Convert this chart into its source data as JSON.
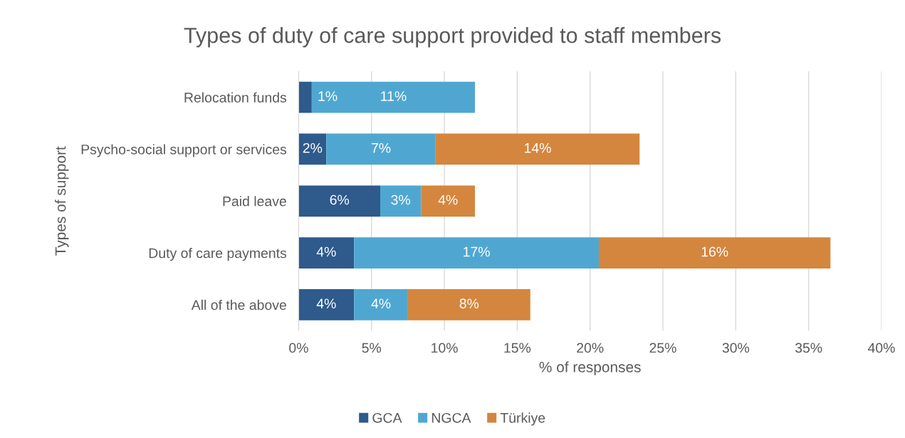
{
  "chart_data": {
    "type": "bar",
    "orientation": "horizontal",
    "stacked": true,
    "title": "Types of duty of care support provided to staff members",
    "xlabel": "% of responses",
    "ylabel": "Types of support",
    "categories": [
      "Relocation funds",
      "Psycho-social support or services",
      "Paid leave",
      "Duty of care payments",
      "All of the above"
    ],
    "series": [
      {
        "name": "GCA",
        "color": "#2e5a8c",
        "values": [
          0.9,
          1.9,
          5.6,
          3.8,
          3.8
        ],
        "value_labels": [
          "1%",
          "2%",
          "6%",
          "4%",
          "4%"
        ]
      },
      {
        "name": "NGCA",
        "color": "#4fa7d1",
        "values": [
          11.2,
          7.5,
          2.8,
          16.8,
          3.7
        ],
        "value_labels": [
          "11%",
          "7%",
          "3%",
          "17%",
          "4%"
        ]
      },
      {
        "name": "Türkiye",
        "color": "#d4863e",
        "values": [
          null,
          14.0,
          3.7,
          15.9,
          8.4
        ],
        "value_labels": [
          null,
          "14%",
          "4%",
          "16%",
          "8%"
        ]
      }
    ],
    "xlim": [
      0,
      40
    ],
    "xticks": [
      {
        "value": 0,
        "label": "0%"
      },
      {
        "value": 5,
        "label": "5%"
      },
      {
        "value": 10,
        "label": "10%"
      },
      {
        "value": 15,
        "label": "15%"
      },
      {
        "value": 20,
        "label": "20%"
      },
      {
        "value": 25,
        "label": "25%"
      },
      {
        "value": 30,
        "label": "30%"
      },
      {
        "value": 35,
        "label": "35%"
      },
      {
        "value": 40,
        "label": "40%"
      }
    ],
    "grid": "x",
    "legend": "bottom"
  }
}
